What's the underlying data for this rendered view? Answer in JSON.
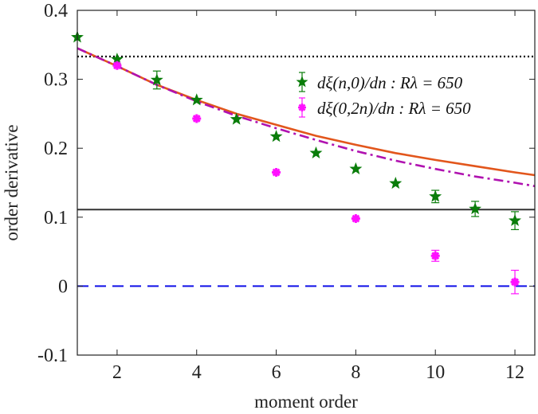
{
  "chart_data": {
    "type": "scatter",
    "xlabel": "moment order",
    "ylabel": "order derivative",
    "xlim": [
      1,
      12.5
    ],
    "ylim": [
      -0.1,
      0.4
    ],
    "xticks": [
      2,
      4,
      6,
      8,
      10,
      12
    ],
    "xtick_labels": [
      "2",
      "4",
      "6",
      "8",
      "10",
      "12"
    ],
    "yticks": [
      -0.1,
      0,
      0.1,
      0.2,
      0.3,
      0.4
    ],
    "ytick_labels": [
      "-0.1",
      "0",
      "0.1",
      "0.2",
      "0.3",
      "0.4"
    ],
    "legend_position": "top-right",
    "series": [
      {
        "name": "dξ(n,0)/dn : Rλ = 650",
        "kind": "points-with-errorbars",
        "marker": "star",
        "color": "#0a7d0a",
        "x": [
          1,
          2,
          3,
          4,
          5,
          6,
          7,
          8,
          9,
          10,
          11,
          12
        ],
        "y": [
          0.361,
          0.329,
          0.299,
          0.27,
          0.242,
          0.217,
          0.193,
          0.17,
          0.149,
          0.13,
          0.112,
          0.095
        ],
        "err": [
          0.003,
          0.004,
          0.013,
          0.004,
          0.004,
          0.005,
          0.004,
          0.004,
          0.006,
          0.009,
          0.011,
          0.013
        ]
      },
      {
        "name": "dξ(0,2n)/dn : Rλ = 650",
        "kind": "points-with-errorbars",
        "marker": "asterisk",
        "color": "#ff10ff",
        "x": [
          2,
          4,
          6,
          8,
          10,
          12
        ],
        "y": [
          0.32,
          0.243,
          0.165,
          0.098,
          0.044,
          0.006
        ],
        "err": [
          0.004,
          0.004,
          0.003,
          0.004,
          0.008,
          0.017
        ]
      },
      {
        "kind": "curve",
        "style": "solid",
        "color": "#e2561c",
        "x": [
          1,
          2,
          3,
          4,
          5,
          6,
          7,
          8,
          9,
          10,
          11,
          12,
          12.5
        ],
        "y": [
          0.345,
          0.319,
          0.292,
          0.27,
          0.25,
          0.234,
          0.218,
          0.205,
          0.193,
          0.183,
          0.174,
          0.165,
          0.161
        ]
      },
      {
        "kind": "curve",
        "style": "dash-dot",
        "color": "#b012b0",
        "x": [
          1,
          2,
          3,
          4,
          5,
          6,
          7,
          8,
          9,
          10,
          11,
          12,
          12.5
        ],
        "y": [
          0.345,
          0.319,
          0.292,
          0.268,
          0.247,
          0.229,
          0.212,
          0.196,
          0.182,
          0.17,
          0.159,
          0.15,
          0.145
        ]
      },
      {
        "kind": "hline",
        "style": "dotted",
        "color": "#000000",
        "y": 0.333
      },
      {
        "kind": "hline",
        "style": "solid",
        "color": "#333333",
        "y": 0.111
      },
      {
        "kind": "hline",
        "style": "dashed",
        "color": "#1010e8",
        "y": 0.0
      }
    ]
  }
}
